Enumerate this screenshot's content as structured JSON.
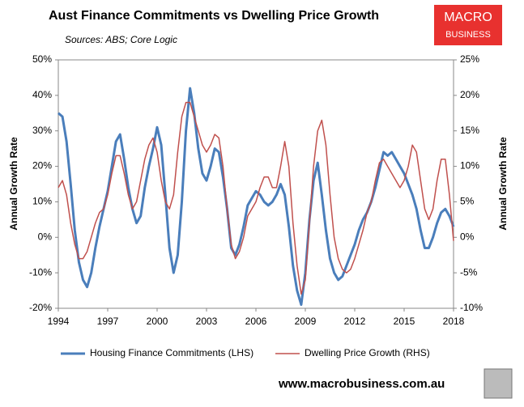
{
  "chart_data": {
    "type": "line",
    "title": "Aust Finance Commitments vs Dwelling Price Growth",
    "subtitle": "Sources: ABS; Core Logic",
    "ylabel": "Annual Growth Rate",
    "y2label": "Annual Growth Rate",
    "logo": [
      "MACRO",
      "BUSINESS"
    ],
    "footer": "www.macrobusiness.com.au",
    "x": [
      1994,
      1994.25,
      1994.5,
      1994.75,
      1995,
      1995.25,
      1995.5,
      1995.75,
      1996,
      1996.25,
      1996.5,
      1996.75,
      1997,
      1997.25,
      1997.5,
      1997.75,
      1998,
      1998.25,
      1998.5,
      1998.75,
      1999,
      1999.25,
      1999.5,
      1999.75,
      2000,
      2000.25,
      2000.5,
      2000.75,
      2001,
      2001.25,
      2001.5,
      2001.75,
      2002,
      2002.25,
      2002.5,
      2002.75,
      2003,
      2003.25,
      2003.5,
      2003.75,
      2004,
      2004.25,
      2004.5,
      2004.75,
      2005,
      2005.25,
      2005.5,
      2005.75,
      2006,
      2006.25,
      2006.5,
      2006.75,
      2007,
      2007.25,
      2007.5,
      2007.75,
      2008,
      2008.25,
      2008.5,
      2008.75,
      2009,
      2009.25,
      2009.5,
      2009.75,
      2010,
      2010.25,
      2010.5,
      2010.75,
      2011,
      2011.25,
      2011.5,
      2011.75,
      2012,
      2012.25,
      2012.5,
      2012.75,
      2013,
      2013.25,
      2013.5,
      2013.75,
      2014,
      2014.25,
      2014.5,
      2014.75,
      2015,
      2015.25,
      2015.5,
      2015.75,
      2016,
      2016.25,
      2016.5,
      2016.75,
      2017,
      2017.25,
      2017.5,
      2017.75,
      2018
    ],
    "series": [
      {
        "name": "Housing Finance Commitments (LHS)",
        "color": "#4a7ebb",
        "axis": "y",
        "values": [
          35,
          34,
          27,
          15,
          2,
          -7,
          -12,
          -14,
          -10,
          -3,
          3,
          8,
          13,
          20,
          27,
          29,
          22,
          14,
          8,
          4,
          6,
          14,
          20,
          25,
          31,
          26,
          12,
          -3,
          -10,
          -5,
          10,
          30,
          42,
          35,
          25,
          18,
          16,
          20,
          25,
          24,
          17,
          8,
          -3,
          -5,
          -2,
          3,
          9,
          11,
          13,
          12,
          10,
          9,
          10,
          12,
          15,
          12,
          3,
          -8,
          -15,
          -19,
          -10,
          5,
          16,
          21,
          12,
          2,
          -6,
          -10,
          -12,
          -11,
          -8,
          -5,
          -2,
          2,
          5,
          7,
          10,
          14,
          19,
          24,
          23,
          24,
          22,
          20,
          18,
          15,
          12,
          8,
          2,
          -3,
          -3,
          0,
          4,
          7,
          8,
          6,
          3
        ]
      },
      {
        "name": "Dwelling Price Growth (RHS)",
        "color": "#c0504d",
        "axis": "y2",
        "values": [
          7,
          8,
          6,
          2,
          -1,
          -3,
          -3,
          -2,
          0,
          2,
          3.5,
          4,
          6,
          9,
          11.5,
          11.5,
          9,
          6,
          4,
          5,
          8,
          11,
          13,
          14,
          12,
          8,
          5,
          4,
          6,
          12,
          17,
          19,
          19,
          17,
          15,
          13,
          12,
          13,
          14.5,
          14,
          10,
          4,
          -1,
          -3,
          -2,
          0,
          3,
          4,
          5,
          7,
          8.5,
          8.5,
          7,
          7,
          10,
          13.5,
          10,
          2,
          -4,
          -8,
          -6,
          2,
          10,
          15,
          16.5,
          13,
          6,
          0,
          -3,
          -4.5,
          -5,
          -4.5,
          -3,
          -1,
          1,
          3.5,
          5,
          8,
          10.5,
          11,
          10,
          9,
          8,
          7,
          8,
          10,
          13,
          12,
          8,
          4,
          2.5,
          4,
          8,
          11,
          11,
          6,
          -0.5
        ]
      }
    ],
    "xlim": [
      1994,
      2018
    ],
    "xticks": [
      1994,
      1997,
      2000,
      2003,
      2006,
      2009,
      2012,
      2015,
      2018
    ],
    "ylim": [
      -20,
      50
    ],
    "yticks": [
      {
        "value": -20,
        "label": "-20%"
      },
      {
        "value": -10,
        "label": "-10%"
      },
      {
        "value": 0,
        "label": "0%"
      },
      {
        "value": 10,
        "label": "10%"
      },
      {
        "value": 20,
        "label": "20%"
      },
      {
        "value": 30,
        "label": "30%"
      },
      {
        "value": 40,
        "label": "40%"
      },
      {
        "value": 50,
        "label": "50%"
      }
    ],
    "y2lim": [
      -10,
      25
    ],
    "y2ticks": [
      {
        "value": -10,
        "label": "-10%"
      },
      {
        "value": -5,
        "label": "-5%"
      },
      {
        "value": 0,
        "label": "0%"
      },
      {
        "value": 5,
        "label": "5%"
      },
      {
        "value": 10,
        "label": "10%"
      },
      {
        "value": 15,
        "label": "15%"
      },
      {
        "value": 20,
        "label": "20%"
      },
      {
        "value": 25,
        "label": "25%"
      }
    ],
    "grid": false,
    "legend": "bottom"
  }
}
